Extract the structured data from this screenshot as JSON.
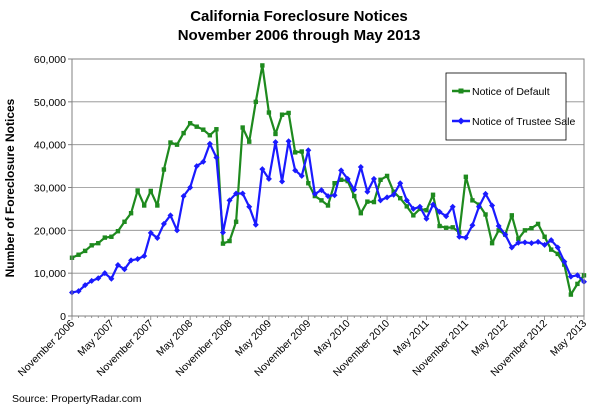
{
  "chart_data": {
    "type": "line",
    "title": "California Foreclosure Notices",
    "subtitle": "November 2006 through May 2013",
    "ylabel": "Number of Foreclosure Notices",
    "xlabel": "",
    "ylim": [
      0,
      60000
    ],
    "yticks": [
      0,
      10000,
      20000,
      30000,
      40000,
      50000,
      60000
    ],
    "ytick_labels": [
      "0",
      "10,000",
      "20,000",
      "30,000",
      "40,000",
      "50,000",
      "60,000"
    ],
    "x_tick_labels": [
      "November 2006",
      "May 2007",
      "November 2007",
      "May 2008",
      "November 2008",
      "May 2009",
      "November 2009",
      "May 2010",
      "November 2010",
      "May 2011",
      "November 2011",
      "May 2012",
      "November 2012",
      "May 2013"
    ],
    "grid": true,
    "legend": "top-right",
    "x": [
      "2006-11",
      "2006-12",
      "2007-01",
      "2007-02",
      "2007-03",
      "2007-04",
      "2007-05",
      "2007-06",
      "2007-07",
      "2007-08",
      "2007-09",
      "2007-10",
      "2007-11",
      "2007-12",
      "2008-01",
      "2008-02",
      "2008-03",
      "2008-04",
      "2008-05",
      "2008-06",
      "2008-07",
      "2008-08",
      "2008-09",
      "2008-10",
      "2008-11",
      "2008-12",
      "2009-01",
      "2009-02",
      "2009-03",
      "2009-04",
      "2009-05",
      "2009-06",
      "2009-07",
      "2009-08",
      "2009-09",
      "2009-10",
      "2009-11",
      "2009-12",
      "2010-01",
      "2010-02",
      "2010-03",
      "2010-04",
      "2010-05",
      "2010-06",
      "2010-07",
      "2010-08",
      "2010-09",
      "2010-10",
      "2010-11",
      "2010-12",
      "2011-01",
      "2011-02",
      "2011-03",
      "2011-04",
      "2011-05",
      "2011-06",
      "2011-07",
      "2011-08",
      "2011-09",
      "2011-10",
      "2011-11",
      "2011-12",
      "2012-01",
      "2012-02",
      "2012-03",
      "2012-04",
      "2012-05",
      "2012-06",
      "2012-07",
      "2012-08",
      "2012-09",
      "2012-10",
      "2012-11",
      "2012-12",
      "2013-01",
      "2013-02",
      "2013-03",
      "2013-04",
      "2013-05"
    ],
    "series": [
      {
        "name": "Notice of Default",
        "color": "#1e8a1e",
        "values": [
          13600,
          14300,
          15200,
          16500,
          17000,
          18300,
          18500,
          19800,
          22000,
          24000,
          29300,
          25800,
          29200,
          25800,
          34200,
          40500,
          40000,
          42700,
          45000,
          44200,
          43500,
          42200,
          43600,
          16900,
          17500,
          22000,
          44000,
          40700,
          50000,
          58500,
          47500,
          42500,
          47000,
          47400,
          38200,
          38400,
          31000,
          28000,
          27000,
          25800,
          31000,
          31800,
          31500,
          28000,
          24000,
          26700,
          26600,
          31800,
          32700,
          29000,
          27500,
          25600,
          23500,
          25000,
          24700,
          28300,
          21000,
          20600,
          20700,
          19500,
          32500,
          27000,
          26000,
          23700,
          17000,
          20000,
          19000,
          23500,
          18000,
          20000,
          20500,
          21500,
          18500,
          15500,
          14500,
          12000,
          5000,
          7500,
          9500
        ]
      },
      {
        "name": "Notice of Trustee Sale",
        "color": "#1a1aff",
        "values": [
          5500,
          5800,
          7200,
          8200,
          8800,
          10000,
          8700,
          11900,
          10900,
          13000,
          13300,
          14000,
          19400,
          18200,
          21500,
          23500,
          20000,
          28000,
          30000,
          35000,
          36000,
          40200,
          37000,
          19500,
          27000,
          28600,
          28600,
          25500,
          21300,
          34300,
          32000,
          40600,
          31400,
          40800,
          34000,
          32700,
          38700,
          28500,
          29400,
          28000,
          28200,
          34000,
          32000,
          29500,
          34800,
          29000,
          32000,
          27000,
          27700,
          28300,
          31000,
          27000,
          25000,
          25500,
          22700,
          26000,
          24300,
          23300,
          25500,
          18500,
          18300,
          21200,
          25500,
          28500,
          25800,
          21000,
          19000,
          16000,
          17100,
          17200,
          17000,
          17300,
          16600,
          17700,
          16000,
          12700,
          9200,
          9500,
          8000
        ]
      }
    ]
  },
  "source": "Source: PropertyRadar.com"
}
